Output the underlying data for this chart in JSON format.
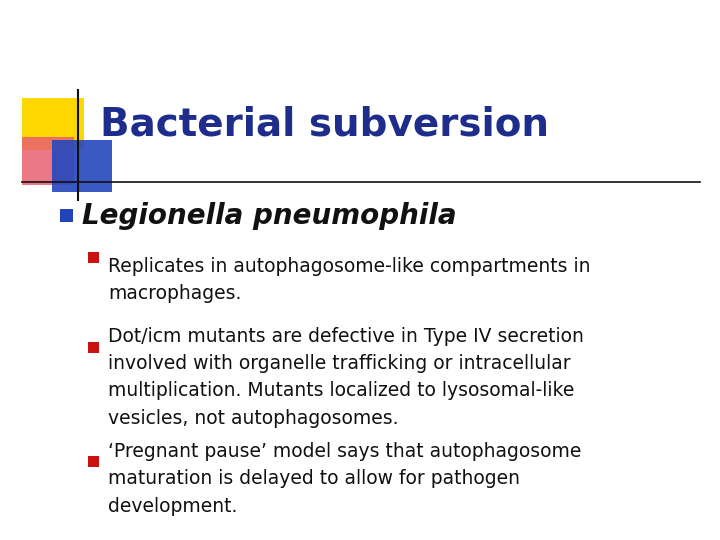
{
  "title": "Bacterial subversion",
  "title_color": "#1E2D8C",
  "title_fontsize": 28,
  "background_color": "#FFFFFF",
  "subtitle": "Legionella pneumophila",
  "subtitle_color": "#111111",
  "subtitle_fontsize": 20,
  "subtitle_bullet_color": "#2244BB",
  "body_text_color": "#111111",
  "body_fontsize": 13.5,
  "sub_bullet_color": "#CC1111",
  "bullets": [
    "Replicates in autophagosome-like compartments in\nmacrophages.",
    "Dot/icm mutants are defective in Type IV secretion\ninvolved with organelle trafficking or intracellular\nmultiplication. Mutants localized to lysosomal-like\nvesicles, not autophagosomes.",
    "‘Pregnant pause’ model says that autophagosome\nmaturation is delayed to allow for pathogen\ndevelopment."
  ],
  "logo_yellow": "#FFD700",
  "logo_red_pink": "#E86070",
  "logo_blue": "#2244BB",
  "logo_blue_fade": "#6688DD"
}
